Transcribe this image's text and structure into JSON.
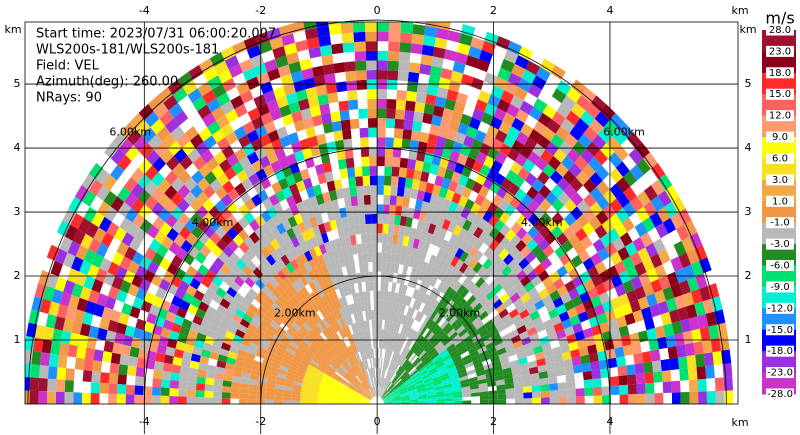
{
  "chart_data": {
    "type": "ppi",
    "info": [
      "Start time: 2023/07/31 06:00:20.007",
      "WLS200s-181/WLS200s-181",
      "Field: VEL",
      "Azimuth(deg): 260.00",
      "NRays: 90"
    ],
    "x_unit": "km",
    "y_unit": "km",
    "xlim": [
      -6.05,
      6.2
    ],
    "ylim": [
      0,
      5.97
    ],
    "xticks": [
      -4,
      -2,
      0,
      2,
      4
    ],
    "yticks": [
      1,
      2,
      3,
      4,
      5
    ],
    "grid": true,
    "range_rings": [
      {
        "value": 2,
        "label": "2.00km"
      },
      {
        "value": 4,
        "label": "4.00km"
      },
      {
        "value": 6,
        "label": "6.00km"
      }
    ],
    "colorbar": {
      "title": "m/s",
      "ticks": [
        {
          "value": 28,
          "label": "28.0"
        },
        {
          "value": 23,
          "label": "23.0"
        },
        {
          "value": 18,
          "label": "18.0"
        },
        {
          "value": 15,
          "label": "15.0"
        },
        {
          "value": 12,
          "label": "12.0"
        },
        {
          "value": 9,
          "label": "9.0"
        },
        {
          "value": 6,
          "label": "6.0"
        },
        {
          "value": 3,
          "label": "3.0"
        },
        {
          "value": 1,
          "label": "1.0"
        },
        {
          "value": -1,
          "label": "-1.0"
        },
        {
          "value": -3,
          "label": "-3.0"
        },
        {
          "value": -6,
          "label": "-6.0"
        },
        {
          "value": -9,
          "label": "-9.0"
        },
        {
          "value": -12,
          "label": "-12.0"
        },
        {
          "value": -15,
          "label": "-15.0"
        },
        {
          "value": -18,
          "label": "-18.0"
        },
        {
          "value": -23,
          "label": "-23.0"
        },
        {
          "value": -28,
          "label": "-28.0"
        }
      ],
      "colors": [
        "#a01030",
        "#8b0018",
        "#ff2a2a",
        "#ff6060",
        "#ff9a70",
        "#ffff00",
        "#f8e020",
        "#f5a84a",
        "#f09848",
        "#b8b8b8",
        "#228b22",
        "#00e070",
        "#00f0d0",
        "#1e90ff",
        "#0000ff",
        "#9b30e0",
        "#cc33cc"
      ]
    }
  }
}
